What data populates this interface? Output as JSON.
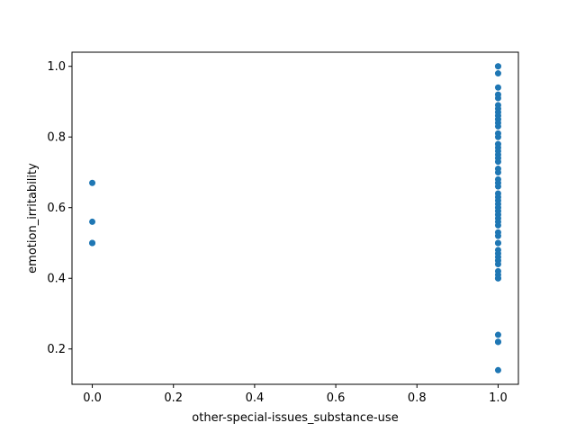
{
  "chart_data": {
    "type": "scatter",
    "title": "",
    "xlabel": "other-special-issues_substance-use",
    "ylabel": "emotion_irritability",
    "xlim": [
      -0.05,
      1.05
    ],
    "ylim": [
      0.1,
      1.04
    ],
    "xticks": [
      "0.0",
      "0.2",
      "0.4",
      "0.6",
      "0.8",
      "1.0"
    ],
    "yticks": [
      "0.2",
      "0.4",
      "0.6",
      "0.8",
      "1.0"
    ],
    "grid": false,
    "marker_color": "#1f77b4",
    "series": [
      {
        "x": [
          0,
          0,
          0,
          0,
          1,
          1,
          1,
          1,
          1,
          1,
          1,
          1,
          1,
          1,
          1,
          1,
          1,
          1,
          1,
          1,
          1,
          1,
          1,
          1,
          1,
          1,
          1,
          1,
          1,
          1,
          1,
          1,
          1,
          1,
          1,
          1,
          1,
          1,
          1,
          1,
          1,
          1,
          1,
          1,
          1,
          1,
          1,
          1,
          1,
          1,
          1,
          1,
          1,
          1,
          1,
          1,
          1
        ],
        "y": [
          0.67,
          0.56,
          0.5,
          0.5,
          1.0,
          1.0,
          0.98,
          0.94,
          0.92,
          0.91,
          0.89,
          0.88,
          0.87,
          0.86,
          0.85,
          0.84,
          0.83,
          0.81,
          0.8,
          0.78,
          0.77,
          0.76,
          0.75,
          0.74,
          0.73,
          0.7,
          0.68,
          0.67,
          0.66,
          0.64,
          0.62,
          0.61,
          0.6,
          0.59,
          0.58,
          0.57,
          0.56,
          0.55,
          0.53,
          0.52,
          0.5,
          0.5,
          0.48,
          0.47,
          0.46,
          0.45,
          0.44,
          0.42,
          0.41,
          0.4,
          0.4,
          0.24,
          0.22,
          0.22,
          0.14,
          0.63,
          0.71
        ]
      }
    ]
  }
}
